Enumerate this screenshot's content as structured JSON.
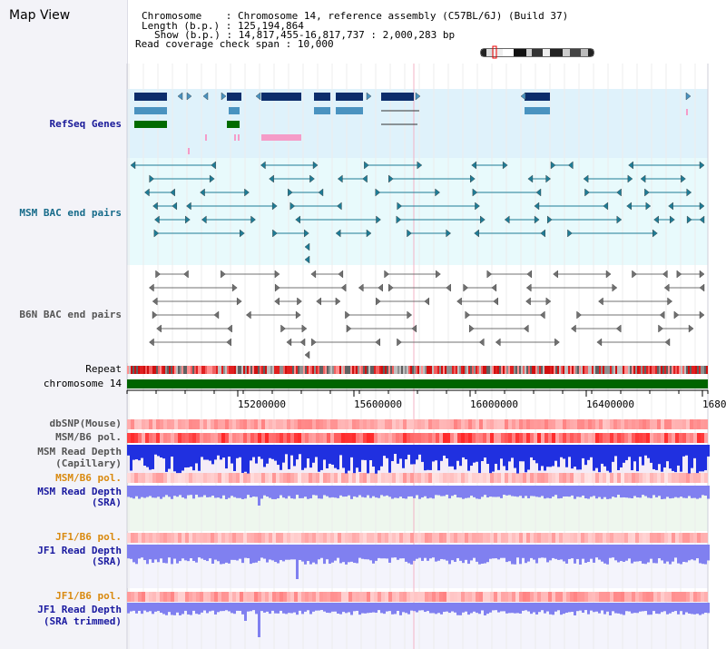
{
  "header": {
    "title": "Map View",
    "chromosome_label": "Chromosome",
    "chromosome_value": "Chromosome 14, reference assembly (C57BL/6J) (Build 37)",
    "length_label": "Length (b.p.)",
    "length_value": "125,194,864",
    "show_label": "Show (b.p.)",
    "show_value": "14,817,455-16,817,737 : 2,000,283 bp",
    "coverage_label": "Read coverage check span",
    "coverage_value": "10,000"
  },
  "tracks": {
    "refseq": "RefSeq Genes",
    "msm_bac": "MSM BAC end pairs",
    "b6n_bac": "B6N BAC end pairs",
    "repeat": "Repeat",
    "chromosome": "chromosome 14",
    "dbsnp": "dbSNP(Mouse)",
    "msm_b6_pol": "MSM/B6 pol.",
    "msm_read_depth_cap": "MSM Read Depth",
    "msm_read_depth_cap_sub": "(Capillary)",
    "msm_b6_pol_2": "MSM/B6 pol.",
    "msm_read_depth_sra": "MSM Read Depth",
    "msm_read_depth_sra_sub": "(SRA)",
    "jf1_b6_pol": "JF1/B6 pol.",
    "jf1_read_depth": "JF1 Read Depth",
    "jf1_read_depth_sub": "(SRA)",
    "jf1_b6_pol_2": "JF1/B6 pol.",
    "jf1_read_depth_trim": "JF1 Read Depth",
    "jf1_read_depth_trim_sub": "(SRA trimmed)"
  },
  "axis": {
    "ticks": [
      "15200000",
      "15600000",
      "16000000",
      "16400000",
      "1680"
    ]
  },
  "colors": {
    "refseq_bg": "#dff2fb",
    "msm_bac_bg": "#e8fafc",
    "b6n_bac_bg": "#ffffff",
    "chromosome_bar": "#006400",
    "dark_gene": "#0c2d6b",
    "mid_gene": "#4a93c0",
    "green_gene": "#006b00",
    "pink_gene": "#f59cc8",
    "bac_teal": "#1e7c96",
    "bac_gray": "#707070",
    "depth_blue": "#2030e0",
    "depth_light": "#8080f0"
  },
  "icons": {
    "ideogram": "chromosome-ideogram-icon"
  }
}
